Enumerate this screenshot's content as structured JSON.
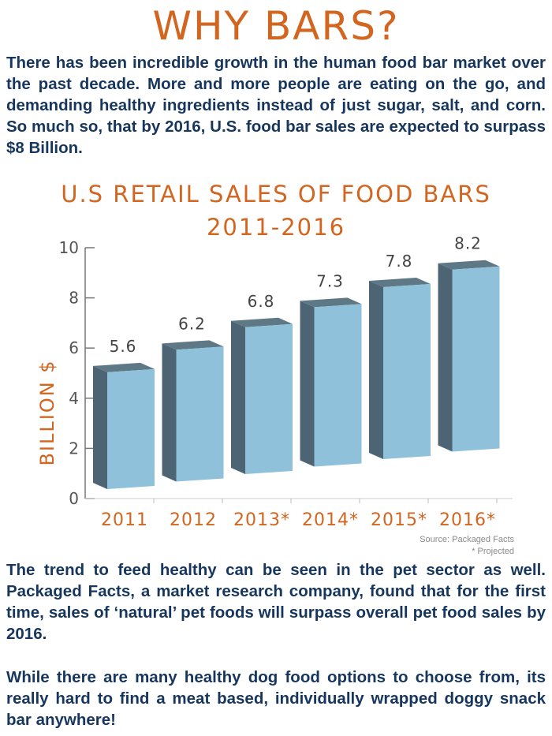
{
  "title": "WHY BARS?",
  "intro": "There has been incredible growth in the human food bar market over the past decade. More and more people are eating on the go, and demanding healthy ingredients instead of just sugar, salt, and corn. So much so, that by 2016, U.S. food bar sales are expected to surpass $8 Billion.",
  "chart_data": {
    "type": "bar",
    "title_line1": "U.S RETAIL SALES OF FOOD BARS",
    "title_line2": "2011-2016",
    "categories": [
      "2011",
      "2012",
      "2013*",
      "2014*",
      "2015*",
      "2016*"
    ],
    "values": [
      5.6,
      6.2,
      6.8,
      7.3,
      7.8,
      8.2
    ],
    "value_labels": [
      "5.6",
      "6.2",
      "6.8",
      "7.3",
      "7.8",
      "8.2"
    ],
    "xlabel": "",
    "ylabel": "BILLION $",
    "ylim": [
      0,
      10
    ],
    "yticks": [
      0,
      2,
      4,
      6,
      8,
      10
    ],
    "grid": false,
    "colors": {
      "bar_front": "#8fc1da",
      "bar_side": "#4c6473",
      "bar_top": "#5e7886",
      "text": "#d2651f",
      "axis": "#777777"
    }
  },
  "source": "Source: Packaged Facts",
  "projected_note": "* Projected",
  "paragraph2": "The trend to feed healthy can be seen in the pet sector as well. Packaged Facts, a market research company, found that for the first time, sales of ‘natural’ pet foods will surpass overall pet food sales by 2016.",
  "paragraph3": "While there are many healthy dog food options to choose from, its really hard to find a meat based, individually wrapped doggy snack bar anywhere!"
}
